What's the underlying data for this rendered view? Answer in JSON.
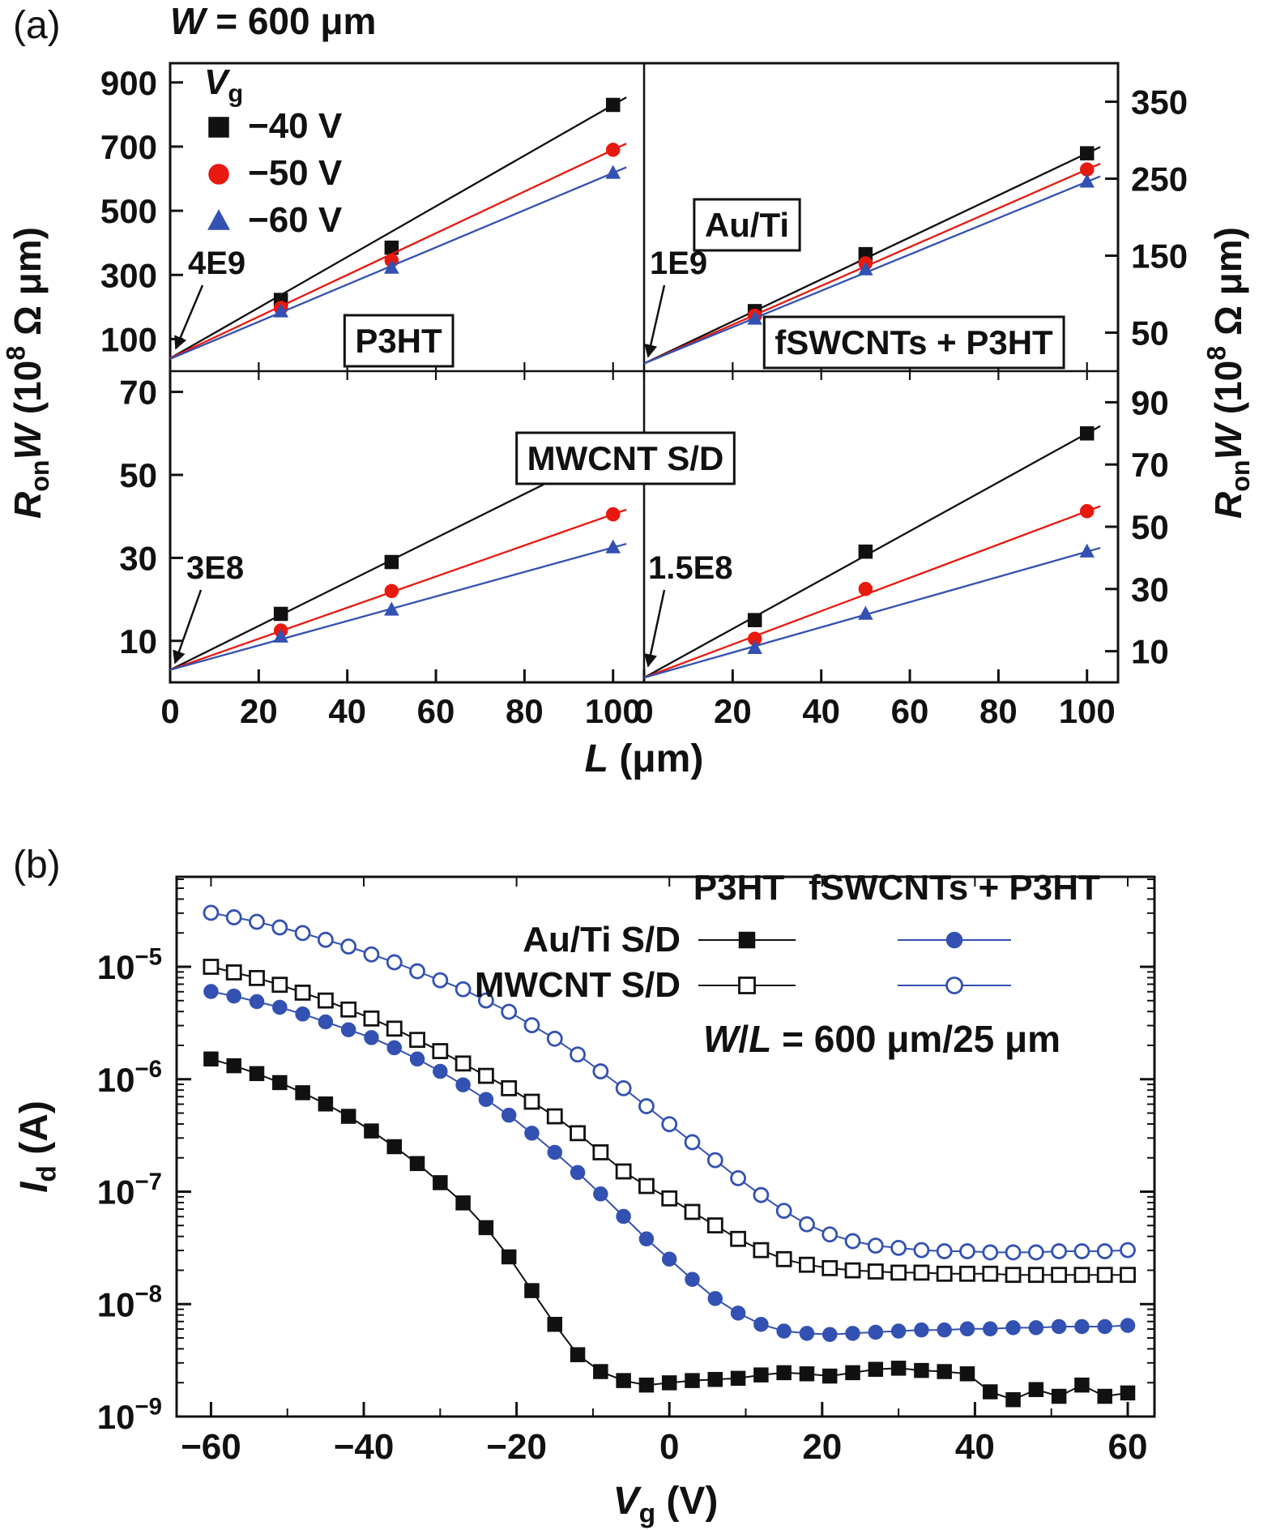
{
  "labels": {
    "panel_a": "(a)",
    "panel_b": "(b)"
  },
  "colors": {
    "black": "#111111",
    "red": "#e8190f",
    "blue": "#3351b2"
  },
  "chart_data": [
    {
      "id": "panel_a",
      "type": "line",
      "title": "W = 600 μm",
      "title_segments": [
        {
          "t": "W",
          "i": 1
        },
        {
          "t": " = 600 μm"
        }
      ],
      "xlabel": "L (μm)",
      "xlabel_segments": [
        {
          "t": "L",
          "i": 1
        },
        {
          "t": " (μm)"
        }
      ],
      "ylabel": "RonW (10^8 Ω μm)",
      "ylabel_segments": [
        {
          "t": "R",
          "i": 1
        },
        {
          "t": "on",
          "sub": 1
        },
        {
          "t": "W",
          "i": 1
        },
        {
          "t": " (10"
        },
        {
          "t": "8",
          "sup": 1
        },
        {
          "t": " Ω μm)"
        }
      ],
      "x_ticks": [
        0,
        20,
        40,
        60,
        80,
        100
      ],
      "xlim": [
        0,
        107
      ],
      "legend": {
        "title": "Vg",
        "title_segments": [
          {
            "t": "V",
            "i": 1
          },
          {
            "t": "g",
            "sub": 1
          }
        ],
        "items": [
          {
            "label": "−40 V",
            "marker": "square",
            "color": "black"
          },
          {
            "label": "−50 V",
            "marker": "circle",
            "color": "red"
          },
          {
            "label": "−60 V",
            "marker": "triangle",
            "color": "blue"
          }
        ]
      },
      "region_labels": [
        {
          "key": "auti",
          "text": "Au/Ti"
        },
        {
          "key": "p3ht",
          "text": "P3HT"
        },
        {
          "key": "fswcnt",
          "text": "fSWCNTs + P3HT"
        },
        {
          "key": "mwcnt",
          "text": "MWCNT S/D"
        }
      ],
      "subplots": [
        {
          "name": "P3HT, Au/Ti S/D",
          "position": "top-left",
          "axis": "left",
          "ylim": [
            0,
            960
          ],
          "yticks": [
            100,
            300,
            500,
            700,
            900
          ],
          "intercept_annotation": "4E9",
          "series": [
            {
              "vg": "−40 V",
              "marker": "square",
              "color": "black",
              "intercept": 40,
              "x": [
                25,
                50,
                100
              ],
              "y": [
                222,
                385,
                830
              ]
            },
            {
              "vg": "−50 V",
              "marker": "circle",
              "color": "red",
              "intercept": 40,
              "x": [
                25,
                50,
                100
              ],
              "y": [
                197,
                345,
                690
              ]
            },
            {
              "vg": "−60 V",
              "marker": "triangle",
              "color": "blue",
              "intercept": 38,
              "x": [
                25,
                50,
                100
              ],
              "y": [
                186,
                322,
                618
              ]
            }
          ]
        },
        {
          "name": "fSWCNTs + P3HT, Au/Ti S/D",
          "position": "top-right",
          "axis": "right",
          "ylim": [
            0,
            400
          ],
          "yticks": [
            50,
            150,
            250,
            350
          ],
          "intercept_annotation": "1E9",
          "series": [
            {
              "vg": "−40 V",
              "marker": "square",
              "color": "black",
              "intercept": 10,
              "x": [
                25,
                50,
                100
              ],
              "y": [
                78,
                152,
                283
              ]
            },
            {
              "vg": "−50 V",
              "marker": "circle",
              "color": "red",
              "intercept": 10,
              "x": [
                25,
                50,
                100
              ],
              "y": [
                72,
                140,
                262
              ]
            },
            {
              "vg": "−60 V",
              "marker": "triangle",
              "color": "blue",
              "intercept": 10,
              "x": [
                25,
                50,
                100
              ],
              "y": [
                68,
                132,
                246
              ]
            }
          ]
        },
        {
          "name": "P3HT, MWCNT S/D",
          "position": "bottom-left",
          "axis": "left",
          "ylim": [
            0,
            75
          ],
          "yticks": [
            10,
            30,
            50,
            70
          ],
          "intercept_annotation": "3E8",
          "series": [
            {
              "vg": "−40 V",
              "marker": "square",
              "color": "black",
              "intercept": 3,
              "x": [
                25,
                50,
                100
              ],
              "y": [
                16.5,
                29,
                56
              ]
            },
            {
              "vg": "−50 V",
              "marker": "circle",
              "color": "red",
              "intercept": 3,
              "x": [
                25,
                50,
                100
              ],
              "y": [
                12.5,
                22,
                40.5
              ]
            },
            {
              "vg": "−60 V",
              "marker": "triangle",
              "color": "blue",
              "intercept": 3,
              "x": [
                25,
                50,
                100
              ],
              "y": [
                11,
                17.5,
                32.5
              ]
            }
          ]
        },
        {
          "name": "fSWCNTs + P3HT, MWCNT S/D",
          "position": "bottom-right",
          "axis": "right",
          "ylim": [
            0,
            100
          ],
          "yticks": [
            10,
            30,
            50,
            70,
            90
          ],
          "intercept_annotation": "1.5E8",
          "series": [
            {
              "vg": "−40 V",
              "marker": "square",
              "color": "black",
              "intercept": 1.5,
              "x": [
                25,
                50,
                100
              ],
              "y": [
                20,
                42,
                80
              ]
            },
            {
              "vg": "−50 V",
              "marker": "circle",
              "color": "red",
              "intercept": 1.5,
              "x": [
                25,
                50,
                100
              ],
              "y": [
                14,
                30,
                55
              ]
            },
            {
              "vg": "−60 V",
              "marker": "triangle",
              "color": "blue",
              "intercept": 1.5,
              "x": [
                25,
                50,
                100
              ],
              "y": [
                11,
                22,
                42
              ]
            }
          ]
        }
      ]
    },
    {
      "id": "panel_b",
      "type": "line",
      "xlabel": "Vg (V)",
      "xlabel_segments": [
        {
          "t": "V",
          "i": 1
        },
        {
          "t": "g",
          "sub": 1
        },
        {
          "t": " (V)"
        }
      ],
      "ylabel": "Id (A)",
      "ylabel_segments": [
        {
          "t": "I",
          "i": 1
        },
        {
          "t": "d",
          "sub": 1
        },
        {
          "t": " (A)"
        }
      ],
      "x_ticks": [
        -60,
        -40,
        -20,
        0,
        20,
        40,
        60
      ],
      "xlim": [
        -64.5,
        63.5
      ],
      "y_ticks_exp": [
        -5,
        -6,
        -7,
        -8,
        -9
      ],
      "ylog_range": [
        -9,
        -4.2
      ],
      "annotation": "W/L = 600 μm/25 μm",
      "annotation_segments": [
        {
          "t": "W",
          "i": 1
        },
        {
          "t": "/"
        },
        {
          "t": "L",
          "i": 1
        },
        {
          "t": " = 600 μm/25 μm"
        }
      ],
      "legend": {
        "col_headers": [
          "P3HT",
          "fSWCNTs + P3HT"
        ],
        "rows": [
          {
            "label": "Au/Ti S/D",
            "markers": [
              {
                "shape": "square",
                "color": "black",
                "filled": true
              },
              {
                "shape": "circle",
                "color": "blue",
                "filled": true
              }
            ]
          },
          {
            "label": "MWCNT S/D",
            "markers": [
              {
                "shape": "square",
                "color": "black",
                "filled": false
              },
              {
                "shape": "circle",
                "color": "blue",
                "filled": false
              }
            ]
          }
        ]
      },
      "series": [
        {
          "name": "P3HT, Au/Ti S/D",
          "marker_shape": "square",
          "filled": true,
          "color": "black",
          "x_start": -60,
          "x_step": 3,
          "log10_id": [
            -5.82,
            -5.88,
            -5.95,
            -6.03,
            -6.12,
            -6.22,
            -6.33,
            -6.46,
            -6.6,
            -6.75,
            -6.92,
            -7.1,
            -7.32,
            -7.58,
            -7.88,
            -8.18,
            -8.45,
            -8.6,
            -8.68,
            -8.72,
            -8.7,
            -8.68,
            -8.67,
            -8.66,
            -8.63,
            -8.61,
            -8.62,
            -8.64,
            -8.61,
            -8.58,
            -8.57,
            -8.59,
            -8.6,
            -8.62,
            -8.78,
            -8.85,
            -8.76,
            -8.82,
            -8.72,
            -8.82,
            -8.79
          ]
        },
        {
          "name": "P3HT, MWCNT S/D",
          "marker_shape": "square",
          "filled": false,
          "color": "black",
          "x_start": -60,
          "x_step": 3,
          "log10_id": [
            -5.0,
            -5.05,
            -5.1,
            -5.16,
            -5.23,
            -5.3,
            -5.38,
            -5.46,
            -5.55,
            -5.65,
            -5.75,
            -5.86,
            -5.97,
            -6.08,
            -6.2,
            -6.33,
            -6.48,
            -6.65,
            -6.82,
            -6.95,
            -7.06,
            -7.18,
            -7.3,
            -7.42,
            -7.52,
            -7.6,
            -7.65,
            -7.68,
            -7.7,
            -7.71,
            -7.72,
            -7.72,
            -7.73,
            -7.73,
            -7.73,
            -7.74,
            -7.74,
            -7.74,
            -7.74,
            -7.74,
            -7.74
          ]
        },
        {
          "name": "fSWCNTs + P3HT, Au/Ti S/D",
          "marker_shape": "circle",
          "filled": true,
          "color": "blue",
          "x_start": -60,
          "x_step": 3,
          "log10_id": [
            -5.22,
            -5.26,
            -5.31,
            -5.36,
            -5.42,
            -5.49,
            -5.56,
            -5.63,
            -5.72,
            -5.82,
            -5.93,
            -6.05,
            -6.18,
            -6.32,
            -6.48,
            -6.65,
            -6.83,
            -7.02,
            -7.22,
            -7.42,
            -7.6,
            -7.78,
            -7.95,
            -8.08,
            -8.18,
            -8.24,
            -8.26,
            -8.27,
            -8.26,
            -8.25,
            -8.24,
            -8.23,
            -8.23,
            -8.22,
            -8.22,
            -8.21,
            -8.21,
            -8.2,
            -8.2,
            -8.2,
            -8.19
          ]
        },
        {
          "name": "fSWCNTs + P3HT, MWCNT S/D",
          "marker_shape": "circle",
          "filled": false,
          "color": "blue",
          "x_start": -60,
          "x_step": 3,
          "log10_id": [
            -4.52,
            -4.56,
            -4.6,
            -4.65,
            -4.7,
            -4.76,
            -4.82,
            -4.89,
            -4.96,
            -5.04,
            -5.12,
            -5.2,
            -5.3,
            -5.4,
            -5.52,
            -5.64,
            -5.78,
            -5.93,
            -6.08,
            -6.24,
            -6.4,
            -6.56,
            -6.72,
            -6.88,
            -7.03,
            -7.17,
            -7.29,
            -7.38,
            -7.44,
            -7.48,
            -7.5,
            -7.52,
            -7.53,
            -7.53,
            -7.54,
            -7.54,
            -7.54,
            -7.53,
            -7.53,
            -7.53,
            -7.52
          ]
        }
      ]
    }
  ]
}
